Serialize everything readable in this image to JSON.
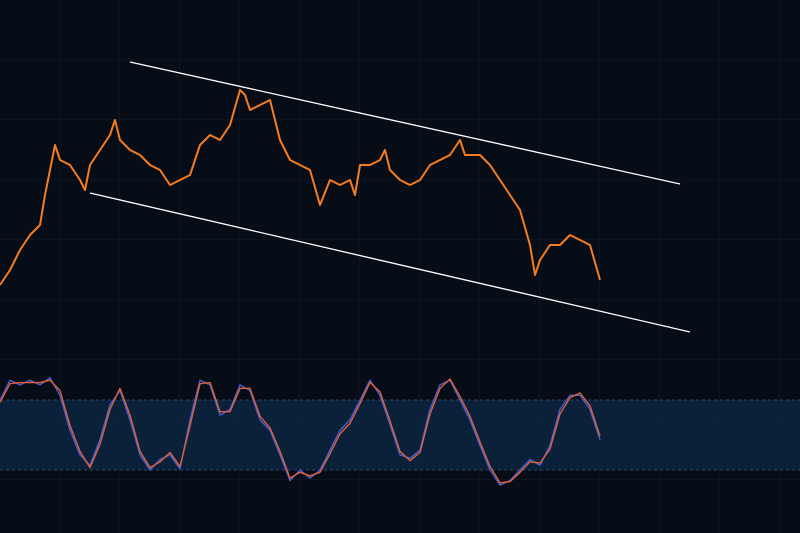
{
  "chart_data": [
    {
      "type": "line",
      "xlim": [
        0,
        800
      ],
      "ylim": [
        0,
        340
      ],
      "color": "#f57c1f",
      "x": [
        0,
        10,
        20,
        30,
        40,
        45,
        50,
        55,
        60,
        70,
        80,
        85,
        90,
        100,
        110,
        115,
        120,
        130,
        140,
        150,
        160,
        170,
        180,
        190,
        200,
        210,
        220,
        230,
        240,
        245,
        250,
        260,
        270,
        280,
        290,
        300,
        310,
        320,
        330,
        340,
        350,
        355,
        360,
        370,
        380,
        385,
        390,
        400,
        410,
        420,
        430,
        440,
        450,
        460,
        465,
        480,
        490,
        500,
        510,
        520,
        530,
        535,
        540,
        550,
        560,
        570,
        580,
        590,
        600
      ],
      "values": [
        55,
        70,
        90,
        105,
        115,
        145,
        170,
        195,
        180,
        175,
        160,
        150,
        175,
        190,
        205,
        220,
        200,
        190,
        185,
        175,
        170,
        155,
        160,
        165,
        195,
        205,
        200,
        215,
        250,
        245,
        230,
        235,
        240,
        200,
        180,
        175,
        170,
        135,
        160,
        155,
        160,
        145,
        175,
        175,
        180,
        190,
        170,
        160,
        155,
        160,
        175,
        180,
        185,
        200,
        185,
        185,
        175,
        160,
        145,
        130,
        95,
        65,
        80,
        95,
        95,
        105,
        100,
        95,
        60
      ],
      "trendlines": [
        {
          "color": "#ffffff",
          "x": [
            130,
            680
          ],
          "values": [
            278,
            156
          ]
        },
        {
          "color": "#ffffff",
          "x": [
            90,
            690
          ],
          "values": [
            147,
            8
          ]
        }
      ]
    },
    {
      "type": "line",
      "xlim": [
        0,
        800
      ],
      "ylim": [
        0,
        100
      ],
      "band": [
        20,
        80
      ],
      "band_color": "#0c2744",
      "x": [
        0,
        10,
        20,
        30,
        40,
        50,
        60,
        70,
        80,
        90,
        100,
        110,
        120,
        130,
        140,
        150,
        160,
        170,
        180,
        190,
        200,
        210,
        220,
        230,
        240,
        250,
        260,
        270,
        280,
        290,
        300,
        310,
        320,
        330,
        340,
        350,
        360,
        370,
        380,
        390,
        400,
        410,
        420,
        430,
        440,
        450,
        460,
        470,
        480,
        490,
        500,
        510,
        520,
        530,
        540,
        550,
        560,
        570,
        580,
        590,
        600
      ],
      "series": [
        {
          "color": "#4a5fd0",
          "values": [
            80,
            97,
            93,
            97,
            93,
            99,
            84,
            54,
            33,
            24,
            46,
            76,
            88,
            63,
            33,
            20,
            29,
            33,
            21,
            63,
            97,
            93,
            67,
            72,
            93,
            88,
            63,
            54,
            33,
            11,
            20,
            13,
            20,
            37,
            54,
            63,
            80,
            97,
            84,
            59,
            33,
            30,
            37,
            72,
            93,
            97,
            80,
            63,
            41,
            20,
            7,
            11,
            20,
            29,
            24,
            41,
            72,
            84,
            84,
            72,
            46
          ]
        },
        {
          "color": "#e0603a",
          "values": [
            78,
            94,
            95,
            95,
            95,
            97,
            88,
            58,
            36,
            22,
            42,
            72,
            90,
            67,
            36,
            22,
            27,
            35,
            23,
            58,
            94,
            95,
            70,
            70,
            90,
            90,
            66,
            56,
            36,
            13,
            18,
            15,
            18,
            34,
            51,
            60,
            77,
            95,
            87,
            62,
            36,
            28,
            35,
            68,
            90,
            98,
            83,
            66,
            44,
            23,
            9,
            10,
            18,
            27,
            26,
            38,
            68,
            82,
            86,
            75,
            49
          ]
        }
      ]
    }
  ]
}
